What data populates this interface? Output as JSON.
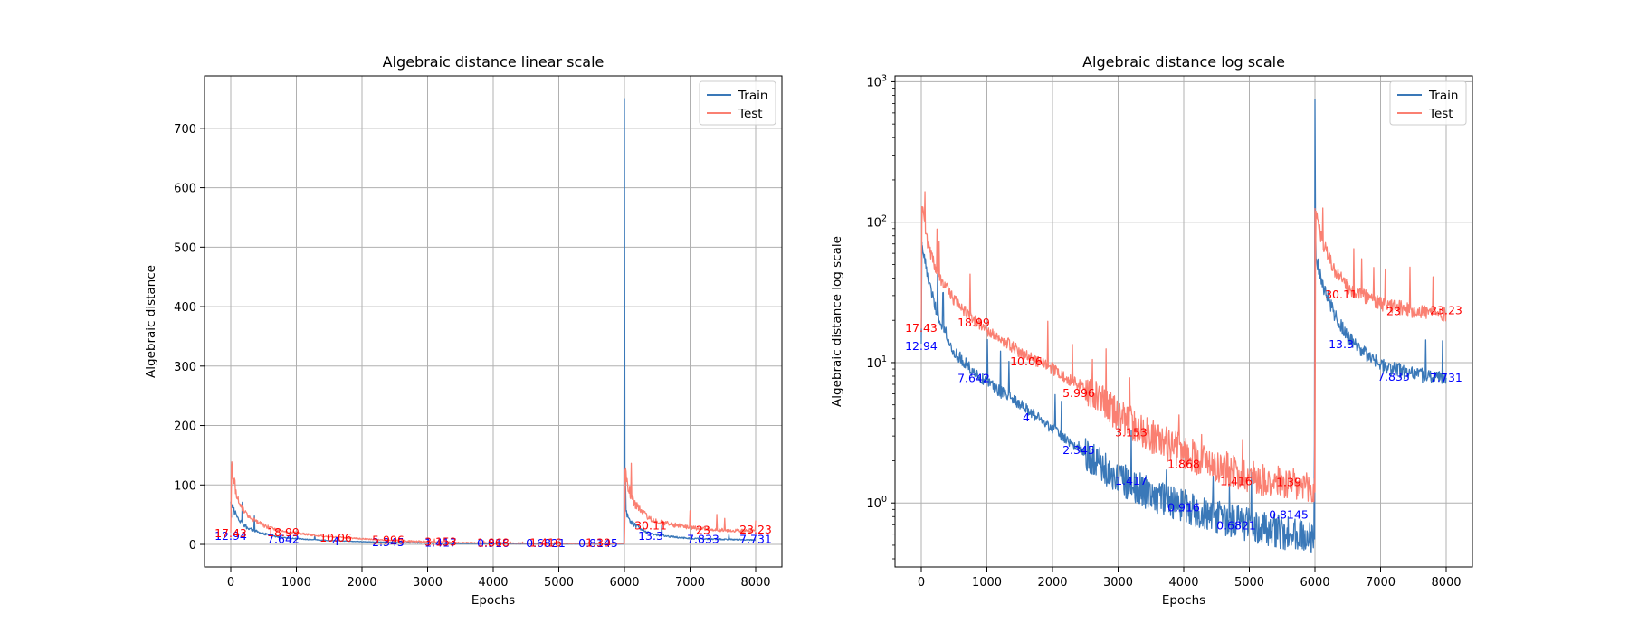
{
  "chart_data": [
    {
      "type": "line",
      "title": "Algebraic distance linear scale",
      "xlabel": "Epochs",
      "ylabel": "Algebraic distance",
      "xlim": [
        -400,
        8400
      ],
      "ylim": [
        -38,
        788
      ],
      "yscale": "linear",
      "grid": true,
      "legend": "top-right",
      "xticks": [
        0,
        1000,
        2000,
        3000,
        4000,
        5000,
        6000,
        7000,
        8000
      ],
      "yticks": [
        0,
        100,
        200,
        300,
        400,
        500,
        600,
        700
      ],
      "series": [
        {
          "name": "Train",
          "color": "#3a78b8",
          "points": [
            [
              0,
              72
            ],
            [
              100,
              45
            ],
            [
              250,
              28
            ],
            [
              500,
              18
            ],
            [
              750,
              12
            ],
            [
              1000,
              9.5
            ],
            [
              1500,
              6.5
            ],
            [
              2000,
              4.6
            ],
            [
              2500,
              3.4
            ],
            [
              3000,
              2.3
            ],
            [
              3500,
              1.6
            ],
            [
              4000,
              1.2
            ],
            [
              4500,
              0.95
            ],
            [
              5000,
              0.8
            ],
            [
              5500,
              0.7
            ],
            [
              5990,
              0.6
            ],
            [
              6000,
              750
            ],
            [
              6010,
              60
            ],
            [
              6100,
              38
            ],
            [
              6300,
              22
            ],
            [
              6500,
              16
            ],
            [
              7000,
              10
            ],
            [
              7500,
              8.5
            ],
            [
              8000,
              7.6
            ]
          ]
        },
        {
          "name": "Test",
          "color": "#fa8072",
          "points": [
            [
              0,
              20
            ],
            [
              10,
              135
            ],
            [
              100,
              80
            ],
            [
              250,
              48
            ],
            [
              500,
              32
            ],
            [
              750,
              23
            ],
            [
              1000,
              19
            ],
            [
              1500,
              13
            ],
            [
              2000,
              9.5
            ],
            [
              2500,
              6.5
            ],
            [
              3000,
              4.2
            ],
            [
              3500,
              3
            ],
            [
              4000,
              2.4
            ],
            [
              4500,
              1.9
            ],
            [
              5000,
              1.6
            ],
            [
              5500,
              1.45
            ],
            [
              5990,
              1.3
            ],
            [
              6000,
              1.3
            ],
            [
              6010,
              125
            ],
            [
              6100,
              80
            ],
            [
              6300,
              50
            ],
            [
              6500,
              38
            ],
            [
              7000,
              28
            ],
            [
              7500,
              24
            ],
            [
              8000,
              22
            ]
          ]
        }
      ],
      "annotations": [
        {
          "text": "12.94",
          "x": 0,
          "y": 12.94,
          "series": "Train"
        },
        {
          "text": "7.642",
          "x": 800,
          "y": 7.642,
          "series": "Train"
        },
        {
          "text": "4",
          "x": 1600,
          "y": 4,
          "series": "Train"
        },
        {
          "text": "2.345",
          "x": 2400,
          "y": 2.345,
          "series": "Train"
        },
        {
          "text": "1.417",
          "x": 3200,
          "y": 1.417,
          "series": "Train"
        },
        {
          "text": "0.916",
          "x": 4000,
          "y": 0.916,
          "series": "Train"
        },
        {
          "text": "0.6821",
          "x": 4800,
          "y": 0.6821,
          "series": "Train"
        },
        {
          "text": "0.8145",
          "x": 5600,
          "y": 0.8145,
          "series": "Train"
        },
        {
          "text": "13.3",
          "x": 6400,
          "y": 13.3,
          "series": "Train"
        },
        {
          "text": "7.833",
          "x": 7200,
          "y": 7.833,
          "series": "Train"
        },
        {
          "text": "7.731",
          "x": 8000,
          "y": 7.731,
          "series": "Train"
        },
        {
          "text": "17.43",
          "x": 0,
          "y": 17.43,
          "series": "Test"
        },
        {
          "text": "18.99",
          "x": 800,
          "y": 18.99,
          "series": "Test"
        },
        {
          "text": "10.06",
          "x": 1600,
          "y": 10.06,
          "series": "Test"
        },
        {
          "text": "5.996",
          "x": 2400,
          "y": 5.996,
          "series": "Test"
        },
        {
          "text": "3.153",
          "x": 3200,
          "y": 3.153,
          "series": "Test"
        },
        {
          "text": "1.868",
          "x": 4000,
          "y": 1.868,
          "series": "Test"
        },
        {
          "text": "1.416",
          "x": 4800,
          "y": 1.416,
          "series": "Test"
        },
        {
          "text": "1.39",
          "x": 5600,
          "y": 1.39,
          "series": "Test"
        },
        {
          "text": "30.11",
          "x": 6400,
          "y": 30.11,
          "series": "Test"
        },
        {
          "text": "23",
          "x": 7200,
          "y": 23,
          "series": "Test"
        },
        {
          "text": "23.23",
          "x": 8000,
          "y": 23.23,
          "series": "Test"
        }
      ]
    },
    {
      "type": "line",
      "title": "Algebraic distance log scale",
      "xlabel": "Epochs",
      "ylabel": "Algebraic distance log scale",
      "xlim": [
        -400,
        8400
      ],
      "ylim": [
        0.35,
        1100
      ],
      "yscale": "log",
      "grid": true,
      "legend": "top-right",
      "xticks": [
        0,
        1000,
        2000,
        3000,
        4000,
        5000,
        6000,
        7000,
        8000
      ],
      "yticks": [
        1,
        10,
        100,
        1000
      ],
      "ytick_labels": [
        "10",
        "10",
        "10",
        "10"
      ],
      "ytick_exponents": [
        "0",
        "1",
        "2",
        "3"
      ],
      "series": [
        {
          "name": "Train",
          "color": "#3a78b8",
          "points": [
            [
              0,
              15
            ],
            [
              10,
              72
            ],
            [
              100,
              40
            ],
            [
              250,
              22
            ],
            [
              500,
              12
            ],
            [
              750,
              9
            ],
            [
              1000,
              7.2
            ],
            [
              1500,
              5
            ],
            [
              2000,
              3.4
            ],
            [
              2500,
              2.3
            ],
            [
              3000,
              1.5
            ],
            [
              3500,
              1.15
            ],
            [
              4000,
              0.95
            ],
            [
              4500,
              0.8
            ],
            [
              5000,
              0.7
            ],
            [
              5500,
              0.62
            ],
            [
              5990,
              0.55
            ],
            [
              6000,
              750
            ],
            [
              6010,
              60
            ],
            [
              6100,
              38
            ],
            [
              6300,
              22
            ],
            [
              6500,
              15
            ],
            [
              7000,
              9.5
            ],
            [
              7500,
              8.3
            ],
            [
              8000,
              7.6
            ]
          ]
        },
        {
          "name": "Test",
          "color": "#fa8072",
          "points": [
            [
              0,
              18
            ],
            [
              10,
              130
            ],
            [
              100,
              70
            ],
            [
              250,
              42
            ],
            [
              500,
              28
            ],
            [
              750,
              21
            ],
            [
              1000,
              17
            ],
            [
              1500,
              12
            ],
            [
              2000,
              9
            ],
            [
              2500,
              6.5
            ],
            [
              3000,
              4.3
            ],
            [
              3500,
              3
            ],
            [
              4000,
              2.3
            ],
            [
              4500,
              1.85
            ],
            [
              5000,
              1.55
            ],
            [
              5500,
              1.4
            ],
            [
              5990,
              1.2
            ],
            [
              6000,
              1.2
            ],
            [
              6010,
              125
            ],
            [
              6100,
              75
            ],
            [
              6300,
              45
            ],
            [
              6500,
              34
            ],
            [
              7000,
              26
            ],
            [
              7500,
              23.5
            ],
            [
              8000,
              22
            ]
          ]
        }
      ],
      "annotations": [
        {
          "text": "12.94",
          "x": 0,
          "y": 12.94,
          "series": "Train"
        },
        {
          "text": "7.642",
          "x": 800,
          "y": 7.642,
          "series": "Train"
        },
        {
          "text": "4",
          "x": 1600,
          "y": 4,
          "series": "Train"
        },
        {
          "text": "2.345",
          "x": 2400,
          "y": 2.345,
          "series": "Train"
        },
        {
          "text": "1.417",
          "x": 3200,
          "y": 1.417,
          "series": "Train"
        },
        {
          "text": "0.916",
          "x": 4000,
          "y": 0.916,
          "series": "Train"
        },
        {
          "text": "0.6821",
          "x": 4800,
          "y": 0.6821,
          "series": "Train"
        },
        {
          "text": "0.8145",
          "x": 5600,
          "y": 0.8145,
          "series": "Train"
        },
        {
          "text": "13.3",
          "x": 6400,
          "y": 13.3,
          "series": "Train"
        },
        {
          "text": "7.833",
          "x": 7200,
          "y": 7.833,
          "series": "Train"
        },
        {
          "text": "7.731",
          "x": 8000,
          "y": 7.731,
          "series": "Train"
        },
        {
          "text": "17.43",
          "x": 0,
          "y": 17.43,
          "series": "Test"
        },
        {
          "text": "18.99",
          "x": 800,
          "y": 18.99,
          "series": "Test"
        },
        {
          "text": "10.06",
          "x": 1600,
          "y": 10.06,
          "series": "Test"
        },
        {
          "text": "5.996",
          "x": 2400,
          "y": 5.996,
          "series": "Test"
        },
        {
          "text": "3.153",
          "x": 3200,
          "y": 3.153,
          "series": "Test"
        },
        {
          "text": "1.868",
          "x": 4000,
          "y": 1.868,
          "series": "Test"
        },
        {
          "text": "1.416",
          "x": 4800,
          "y": 1.416,
          "series": "Test"
        },
        {
          "text": "1.39",
          "x": 5600,
          "y": 1.39,
          "series": "Test"
        },
        {
          "text": "30.11",
          "x": 6400,
          "y": 30.11,
          "series": "Test"
        },
        {
          "text": "23",
          "x": 7200,
          "y": 23,
          "series": "Test"
        },
        {
          "text": "23.23",
          "x": 8000,
          "y": 23.23,
          "series": "Test"
        }
      ]
    }
  ],
  "colors": {
    "train": "#3a78b8",
    "test": "#fa8072",
    "train_annotation": "#0000ff",
    "test_annotation": "#ff0000"
  }
}
